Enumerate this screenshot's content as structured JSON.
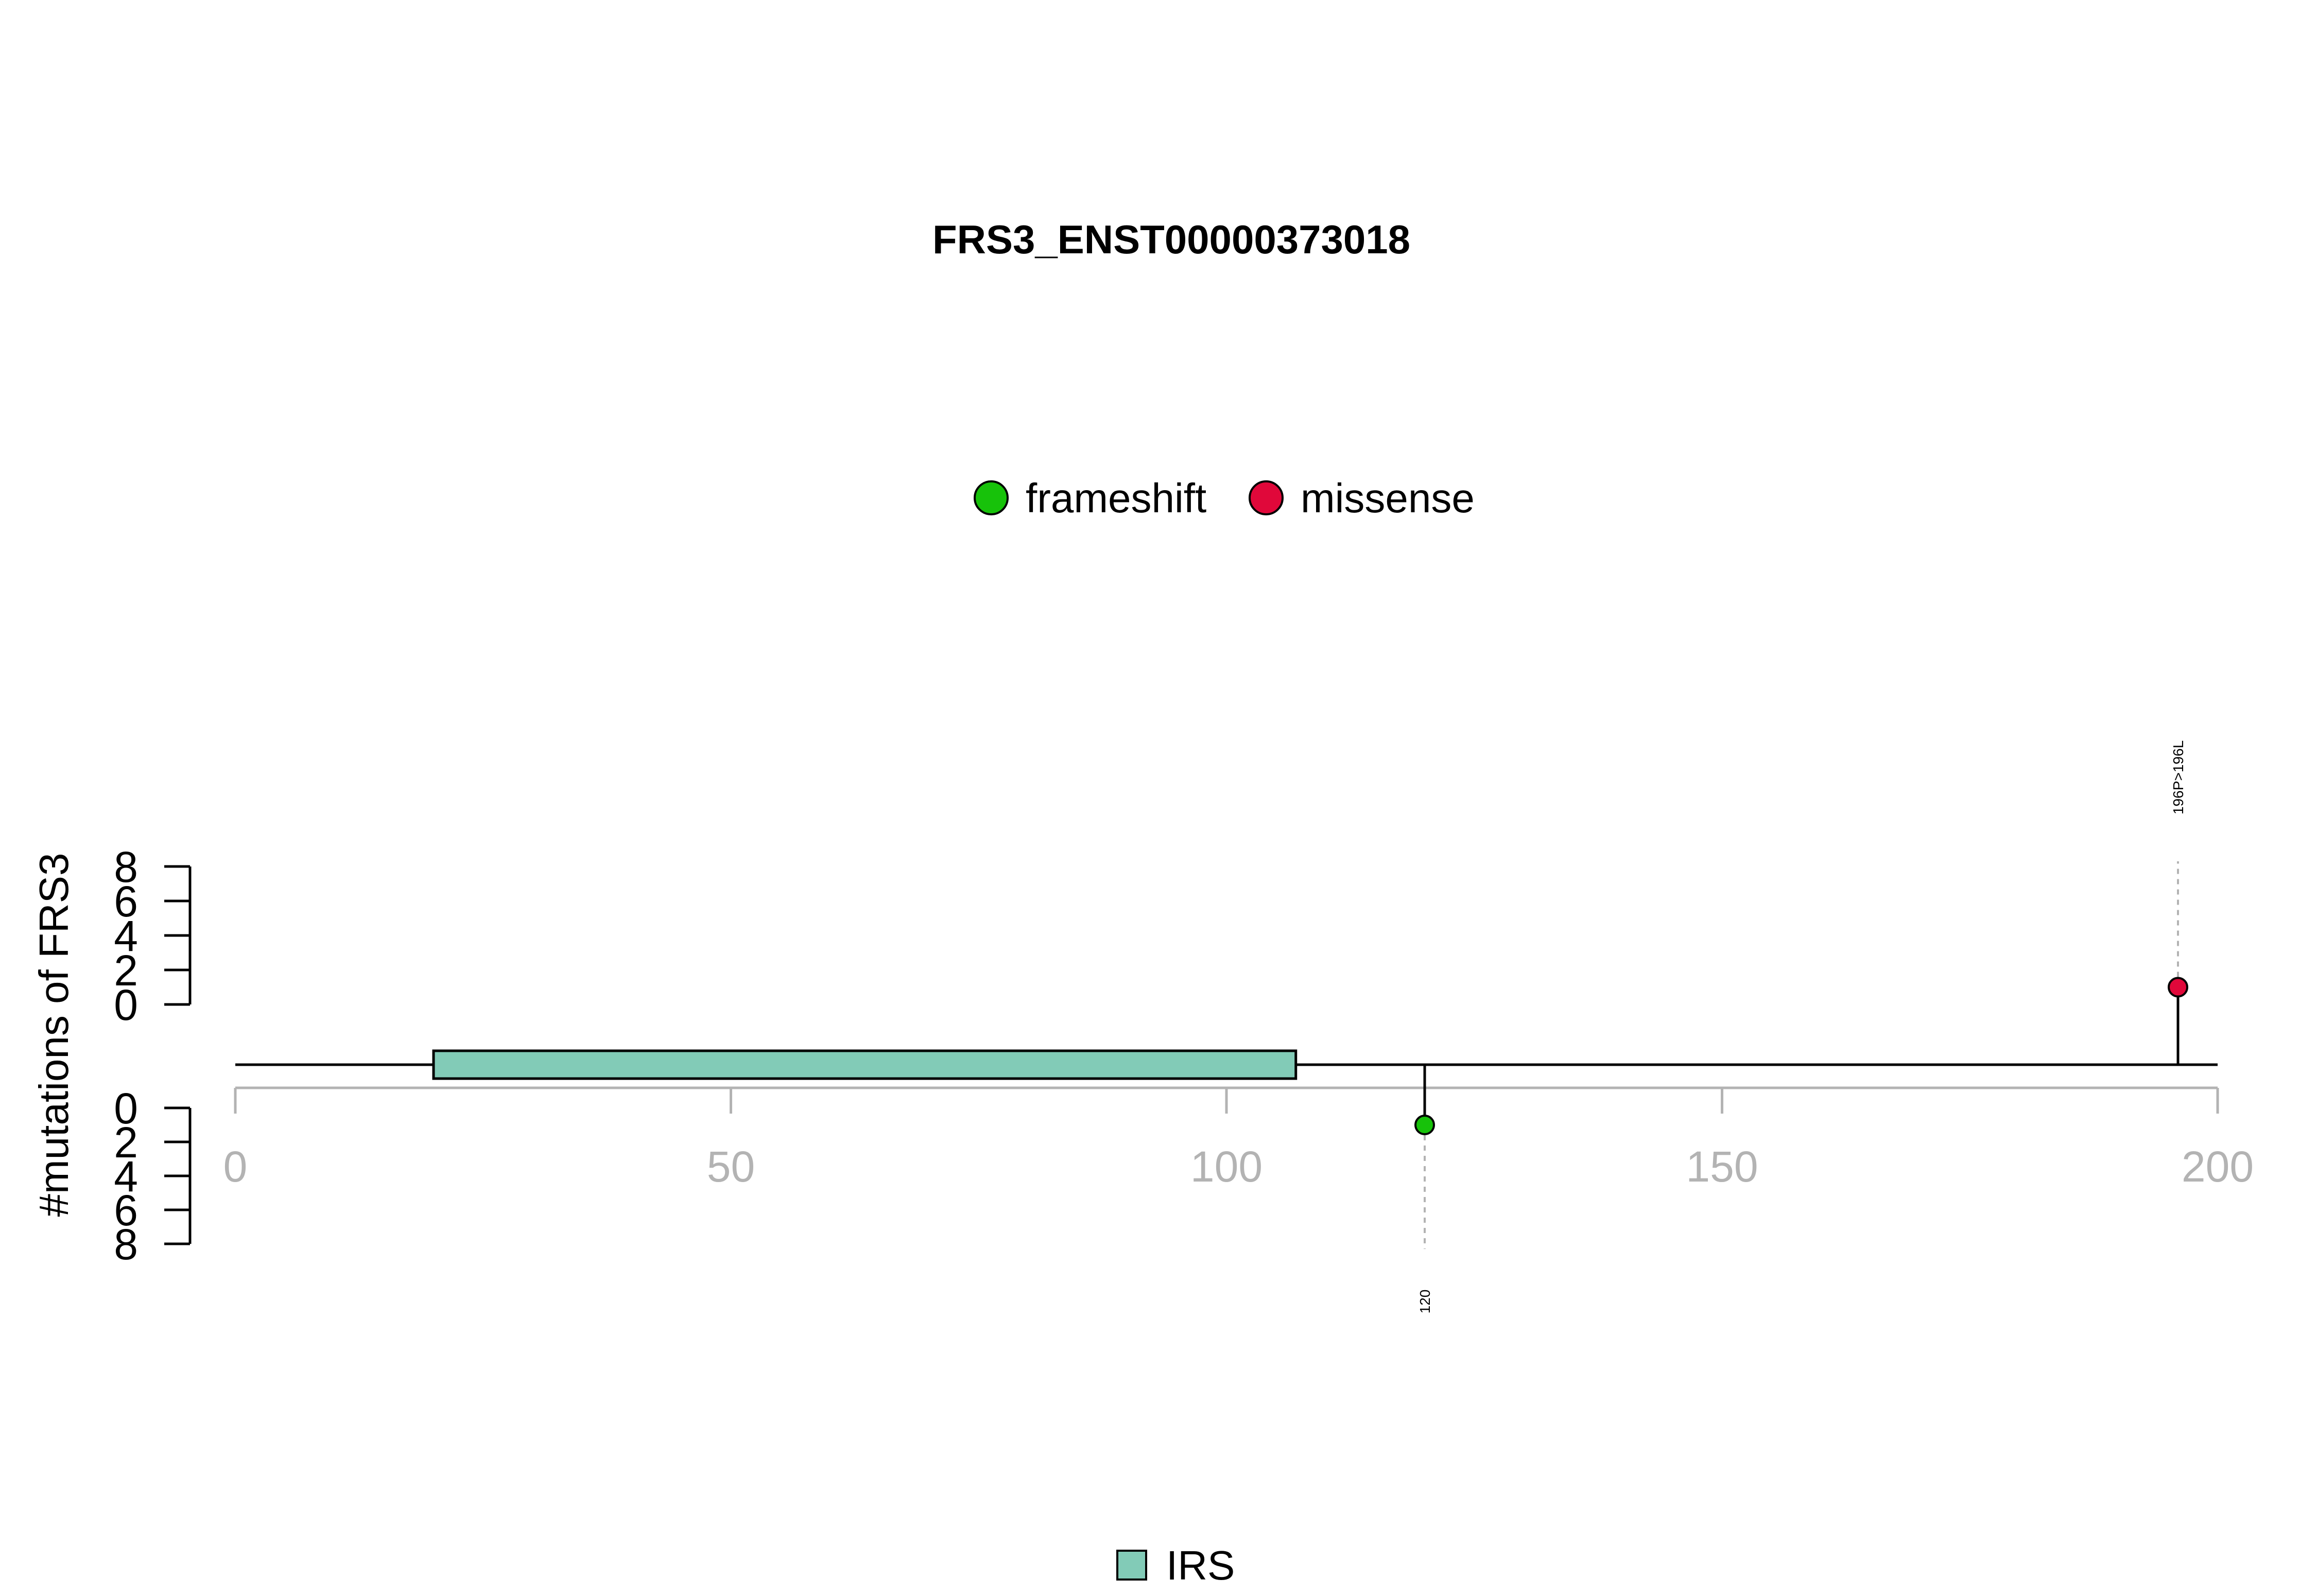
{
  "chart_data": {
    "type": "lollipop",
    "title": "FRS3_ENST00000373018",
    "ylabel": "#mutations of FRS3",
    "xlim": [
      0,
      200
    ],
    "x_ticks": [
      "0",
      "50",
      "100",
      "150",
      "200"
    ],
    "y_ticks": [
      "0",
      "2",
      "4",
      "6",
      "8"
    ],
    "ylim_top": [
      0,
      8
    ],
    "ylim_bottom": [
      0,
      8
    ],
    "legend_top": [
      {
        "label": "frameshift",
        "color": "#17c20a"
      },
      {
        "label": "missense",
        "color": "#e0083a"
      }
    ],
    "legend_bottom": [
      {
        "label": "IRS",
        "color": "#82cbb7"
      }
    ],
    "domains": [
      {
        "name": "IRS",
        "start": 20,
        "end": 107,
        "color": "#82cbb7"
      }
    ],
    "mutations": [
      {
        "position": 196,
        "count": 1,
        "type": "missense",
        "side": "top",
        "label": "196P>196L",
        "color": "#e0083a"
      },
      {
        "position": 120,
        "count": 1,
        "type": "frameshift",
        "side": "bottom",
        "label": "120",
        "color": "#17c20a"
      }
    ]
  }
}
